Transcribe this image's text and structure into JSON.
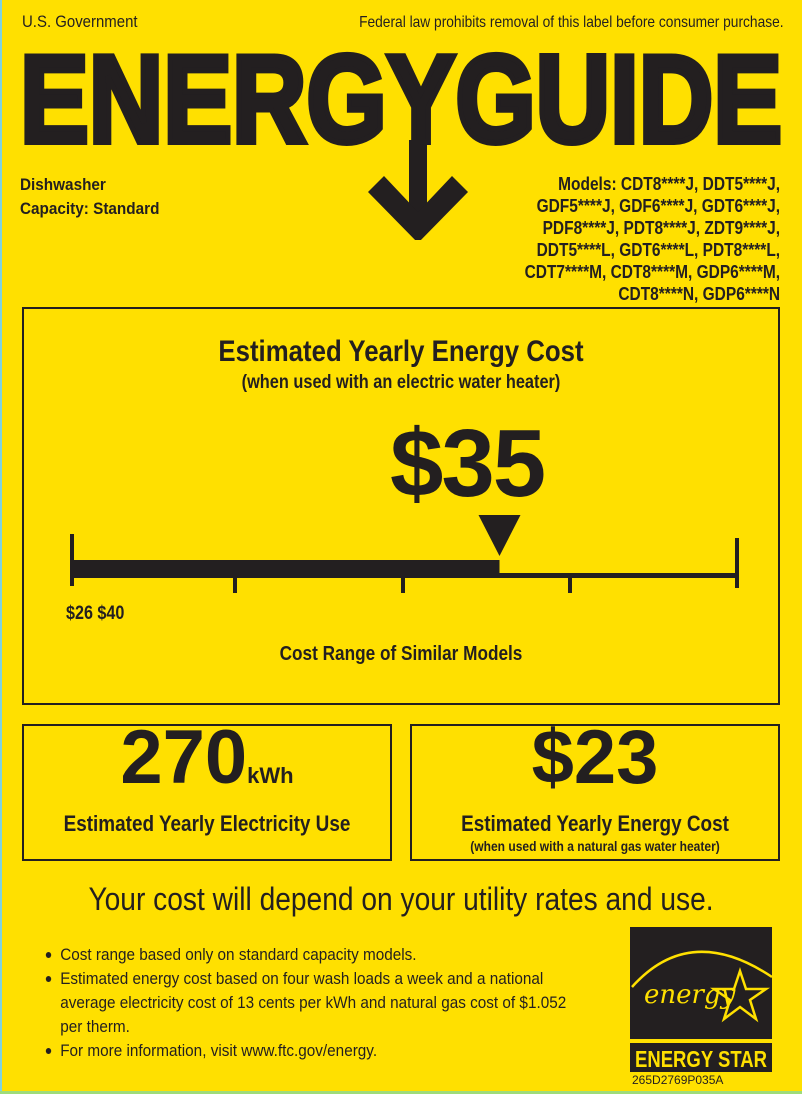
{
  "header": {
    "issuer": "U.S. Government",
    "legal_notice": "Federal law prohibits removal of this label before consumer purchase.",
    "title": "ENERGYGUIDE"
  },
  "appliance": {
    "type": "Dishwasher",
    "capacity": "Capacity: Standard"
  },
  "models": {
    "lines": [
      "Models: CDT8****J, DDT5****J,",
      "GDF5****J, GDF6****J, GDT6****J,",
      "PDF8****J, PDT8****J, ZDT9****J,",
      "DDT5****L, GDT6****L, PDT8****L,",
      "CDT7****M, CDT8****M, GDP6****M,",
      "CDT8****N, GDP6****N"
    ]
  },
  "electric_cost": {
    "heading": "Estimated Yearly Energy Cost",
    "subheading": "(when used with an electric water heater)",
    "value_label": "$35",
    "value": 35,
    "range_min": 26,
    "range_max": 40,
    "range_label": "$26 $40",
    "range_caption": "Cost Range of Similar Models"
  },
  "electricity_use": {
    "value": "270",
    "unit": "kWh",
    "label": "Estimated Yearly Electricity Use"
  },
  "gas_cost": {
    "value": "$23",
    "label": "Estimated Yearly Energy Cost",
    "sublabel": "(when used with a natural gas water heater)"
  },
  "footer": {
    "headline": "Your cost will depend on your utility rates and use.",
    "notes": [
      "Cost range based only on standard capacity models.",
      "Estimated energy cost based on four wash loads a week and a national average electricity cost of 13 cents per kWh and natural gas cost of $1.052 per therm.",
      "For more information, visit www.ftc.gov/energy."
    ],
    "energy_star_script": "energy",
    "energy_star_label": "ENERGY STAR",
    "label_code": "265D2769P035A"
  },
  "colors": {
    "background": "#FFE000",
    "ink": "#231f20"
  }
}
